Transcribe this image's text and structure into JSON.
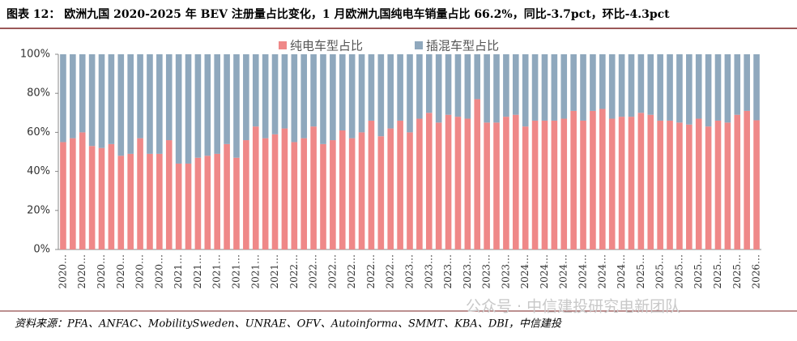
{
  "chart_data": {
    "type": "stacked_bar",
    "title": "图表 12：  欧洲九国 2020-2025 年 BEV 注册量占比变化，1 月欧洲九国纯电车销量占比 66.2%，同比-3.7pct，环比-4.3pct",
    "source": "资料来源：PFA、ANFAC、MobilitySweden、UNRAE、OFV、Autoinforma、SMMT、KBA、DBI，中信建投",
    "watermark": "公众号 · 中信建投研究电新团队",
    "categories": [
      "2020…",
      null,
      "2020…",
      null,
      "2020…",
      null,
      "2020…",
      null,
      "2020…",
      null,
      "2020…",
      null,
      "2021…",
      null,
      "2021…",
      null,
      "2021…",
      null,
      "2021…",
      null,
      "2021…",
      null,
      "2021…",
      null,
      "2022…",
      null,
      "2022…",
      null,
      "2022…",
      null,
      "2022…",
      null,
      "2022…",
      null,
      "2022…",
      null,
      "2023…",
      null,
      "2023…",
      null,
      "2023…",
      null,
      "2023…",
      null,
      "2023…",
      null,
      "2023…",
      null,
      "2024…",
      null,
      "2024…",
      null,
      "2024…",
      null,
      "2024…",
      null,
      "2024…",
      null,
      "2024…",
      null,
      "2025…",
      null,
      "2025…",
      null,
      "2025…",
      null,
      "2025…",
      null,
      "2025…",
      null,
      "2025…",
      null,
      "2026…"
    ],
    "series": [
      {
        "name": "纯电车型占比",
        "color": "#ef8888",
        "values": [
          55,
          57,
          60,
          53,
          52,
          54,
          48,
          49,
          57,
          49,
          49,
          56,
          44,
          44,
          47,
          48,
          49,
          54,
          47,
          56,
          63,
          57,
          59,
          62,
          55,
          57,
          63,
          54,
          56,
          61,
          57,
          60,
          66,
          58,
          62,
          66,
          60,
          67,
          70,
          65,
          69,
          68,
          67,
          77,
          65,
          65,
          68,
          69,
          63,
          66,
          66,
          66,
          67,
          71,
          66,
          71,
          72,
          67,
          68,
          68,
          70,
          69,
          66,
          66,
          65,
          64,
          67,
          63,
          66,
          65,
          69,
          71,
          66.2
        ]
      },
      {
        "name": "插混车型占比",
        "color": "#8fa8bd",
        "values": [
          45,
          43,
          40,
          47,
          48,
          46,
          52,
          51,
          43,
          51,
          51,
          44,
          56,
          56,
          53,
          52,
          51,
          46,
          53,
          44,
          37,
          43,
          41,
          38,
          45,
          43,
          37,
          46,
          44,
          39,
          43,
          40,
          34,
          42,
          38,
          34,
          40,
          33,
          30,
          35,
          31,
          32,
          33,
          23,
          35,
          35,
          32,
          31,
          37,
          34,
          34,
          34,
          33,
          29,
          34,
          29,
          28,
          33,
          32,
          32,
          30,
          31,
          34,
          34,
          35,
          36,
          33,
          37,
          34,
          35,
          31,
          29,
          33.8
        ]
      }
    ],
    "ylim": [
      0,
      100
    ],
    "yticks": [
      {
        "value": 0,
        "label": "0%"
      },
      {
        "value": 20,
        "label": "20%"
      },
      {
        "value": 40,
        "label": "40%"
      },
      {
        "value": 60,
        "label": "60%"
      },
      {
        "value": 80,
        "label": "80%"
      },
      {
        "value": 100,
        "label": "100%"
      }
    ]
  }
}
